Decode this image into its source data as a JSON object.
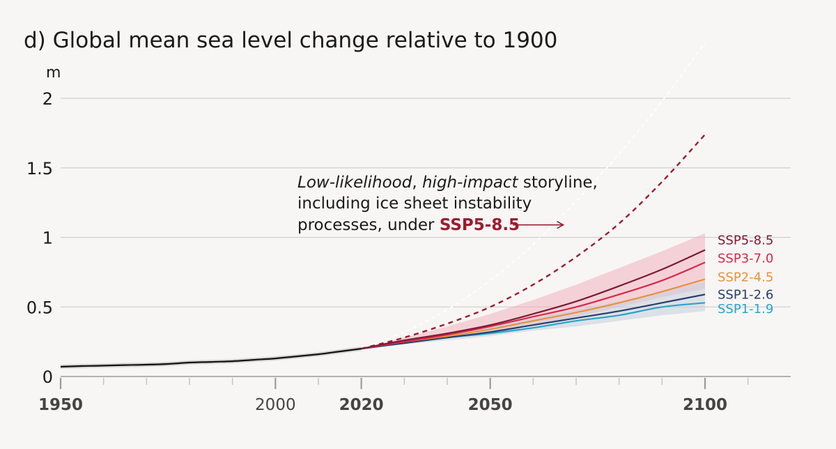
{
  "chart_data": {
    "type": "line",
    "title": "d) Global mean sea level change relative to 1900",
    "ylabel": "m",
    "xlim": [
      1950,
      2120
    ],
    "ylim": [
      0,
      2.1
    ],
    "yticks": [
      {
        "value": 0,
        "label": "0"
      },
      {
        "value": 0.5,
        "label": "0.5"
      },
      {
        "value": 1,
        "label": "1"
      },
      {
        "value": 1.5,
        "label": "1.5"
      },
      {
        "value": 2,
        "label": "2"
      }
    ],
    "xtick_labels": [
      {
        "value": 1950,
        "label": "1950",
        "bold": true
      },
      {
        "value": 2000,
        "label": "2000",
        "bold": false
      },
      {
        "value": 2020,
        "label": "2020",
        "bold": true
      },
      {
        "value": 2050,
        "label": "2050",
        "bold": true
      },
      {
        "value": 2100,
        "label": "2100",
        "bold": true
      }
    ],
    "minor_ticks": [
      1960,
      1970,
      1980,
      1990,
      2000,
      2010,
      2020,
      2030,
      2040,
      2050,
      2060,
      2070,
      2080,
      2090,
      2100,
      2110
    ],
    "grid": true,
    "colors": {
      "observed": "#111111",
      "ssp585": "#7b1a32",
      "ssp370": "#d6294a",
      "ssp245": "#e8913b",
      "ssp126": "#283d6b",
      "ssp119": "#2aa3c9",
      "storyline": "#9b1b30",
      "band_high": "#f3b3bf",
      "band_low": "#c7cfdc"
    },
    "observed": {
      "x": [
        1950,
        1955,
        1960,
        1965,
        1970,
        1975,
        1980,
        1985,
        1990,
        1995,
        2000,
        2005,
        2010,
        2015,
        2020
      ],
      "y": [
        0.07,
        0.075,
        0.078,
        0.082,
        0.085,
        0.09,
        0.1,
        0.105,
        0.11,
        0.12,
        0.13,
        0.145,
        0.16,
        0.18,
        0.2
      ]
    },
    "series": [
      {
        "name": "SSP5-8.5",
        "color_key": "ssp585",
        "x": [
          2020,
          2030,
          2040,
          2050,
          2060,
          2070,
          2080,
          2090,
          2100
        ],
        "y": [
          0.2,
          0.26,
          0.31,
          0.37,
          0.45,
          0.54,
          0.65,
          0.77,
          0.91
        ]
      },
      {
        "name": "SSP3-7.0",
        "color_key": "ssp370",
        "x": [
          2020,
          2030,
          2040,
          2050,
          2060,
          2070,
          2080,
          2090,
          2100
        ],
        "y": [
          0.2,
          0.25,
          0.3,
          0.36,
          0.43,
          0.5,
          0.59,
          0.69,
          0.82
        ]
      },
      {
        "name": "SSP2-4.5",
        "color_key": "ssp245",
        "x": [
          2020,
          2030,
          2040,
          2050,
          2060,
          2070,
          2080,
          2090,
          2100
        ],
        "y": [
          0.2,
          0.25,
          0.29,
          0.34,
          0.4,
          0.46,
          0.53,
          0.61,
          0.7
        ]
      },
      {
        "name": "SSP1-2.6",
        "color_key": "ssp126",
        "x": [
          2020,
          2030,
          2040,
          2050,
          2060,
          2070,
          2080,
          2090,
          2100
        ],
        "y": [
          0.2,
          0.24,
          0.28,
          0.32,
          0.37,
          0.42,
          0.47,
          0.53,
          0.59
        ]
      },
      {
        "name": "SSP1-1.9",
        "color_key": "ssp119",
        "x": [
          2020,
          2030,
          2040,
          2050,
          2060,
          2070,
          2080,
          2090,
          2100
        ],
        "y": [
          0.2,
          0.24,
          0.28,
          0.31,
          0.35,
          0.4,
          0.44,
          0.5,
          0.53
        ]
      }
    ],
    "bands": [
      {
        "color_key": "band_high",
        "x": [
          2020,
          2030,
          2040,
          2050,
          2060,
          2070,
          2080,
          2090,
          2100
        ],
        "lower": [
          0.2,
          0.24,
          0.28,
          0.32,
          0.37,
          0.43,
          0.5,
          0.57,
          0.63
        ],
        "upper": [
          0.2,
          0.28,
          0.36,
          0.45,
          0.55,
          0.66,
          0.78,
          0.9,
          1.03
        ]
      },
      {
        "color_key": "band_low",
        "x": [
          2020,
          2030,
          2040,
          2050,
          2060,
          2070,
          2080,
          2090,
          2100
        ],
        "lower": [
          0.2,
          0.23,
          0.26,
          0.29,
          0.33,
          0.36,
          0.4,
          0.44,
          0.47
        ],
        "upper": [
          0.2,
          0.25,
          0.3,
          0.36,
          0.42,
          0.48,
          0.54,
          0.61,
          0.68
        ]
      }
    ],
    "storyline": {
      "x": [
        2020,
        2030,
        2040,
        2050,
        2060,
        2070,
        2080,
        2090,
        2100
      ],
      "y": [
        0.2,
        0.28,
        0.38,
        0.5,
        0.66,
        0.86,
        1.1,
        1.4,
        1.74
      ]
    },
    "storyline_upper": {
      "x": [
        2020,
        2030,
        2040,
        2050,
        2060,
        2070,
        2080,
        2090,
        2100
      ],
      "y": [
        0.2,
        0.32,
        0.48,
        0.69,
        0.95,
        1.26,
        1.6,
        1.98,
        2.4
      ]
    },
    "annotation": {
      "line1_italic1": "Low-likelihood",
      "line1_sep": ", ",
      "line1_italic2": "high-impact",
      "line1_rest": " storyline,",
      "line2": "including ice sheet instability",
      "line3_prefix": "processes, under ",
      "line3_bold": "SSP5-8.5",
      "arrow_target": {
        "x": 2067,
        "y": 1.09
      }
    },
    "legend_labels": [
      {
        "label": "SSP5-8.5",
        "color_key": "ssp585",
        "y": 0.985
      },
      {
        "label": "SSP3-7.0",
        "color_key": "ssp370",
        "y": 0.855
      },
      {
        "label": "SSP2-4.5",
        "color_key": "ssp245",
        "y": 0.72
      },
      {
        "label": "SSP1-2.6",
        "color_key": "ssp126",
        "y": 0.595
      },
      {
        "label": "SSP1-1.9",
        "color_key": "ssp119",
        "y": 0.49
      }
    ]
  }
}
